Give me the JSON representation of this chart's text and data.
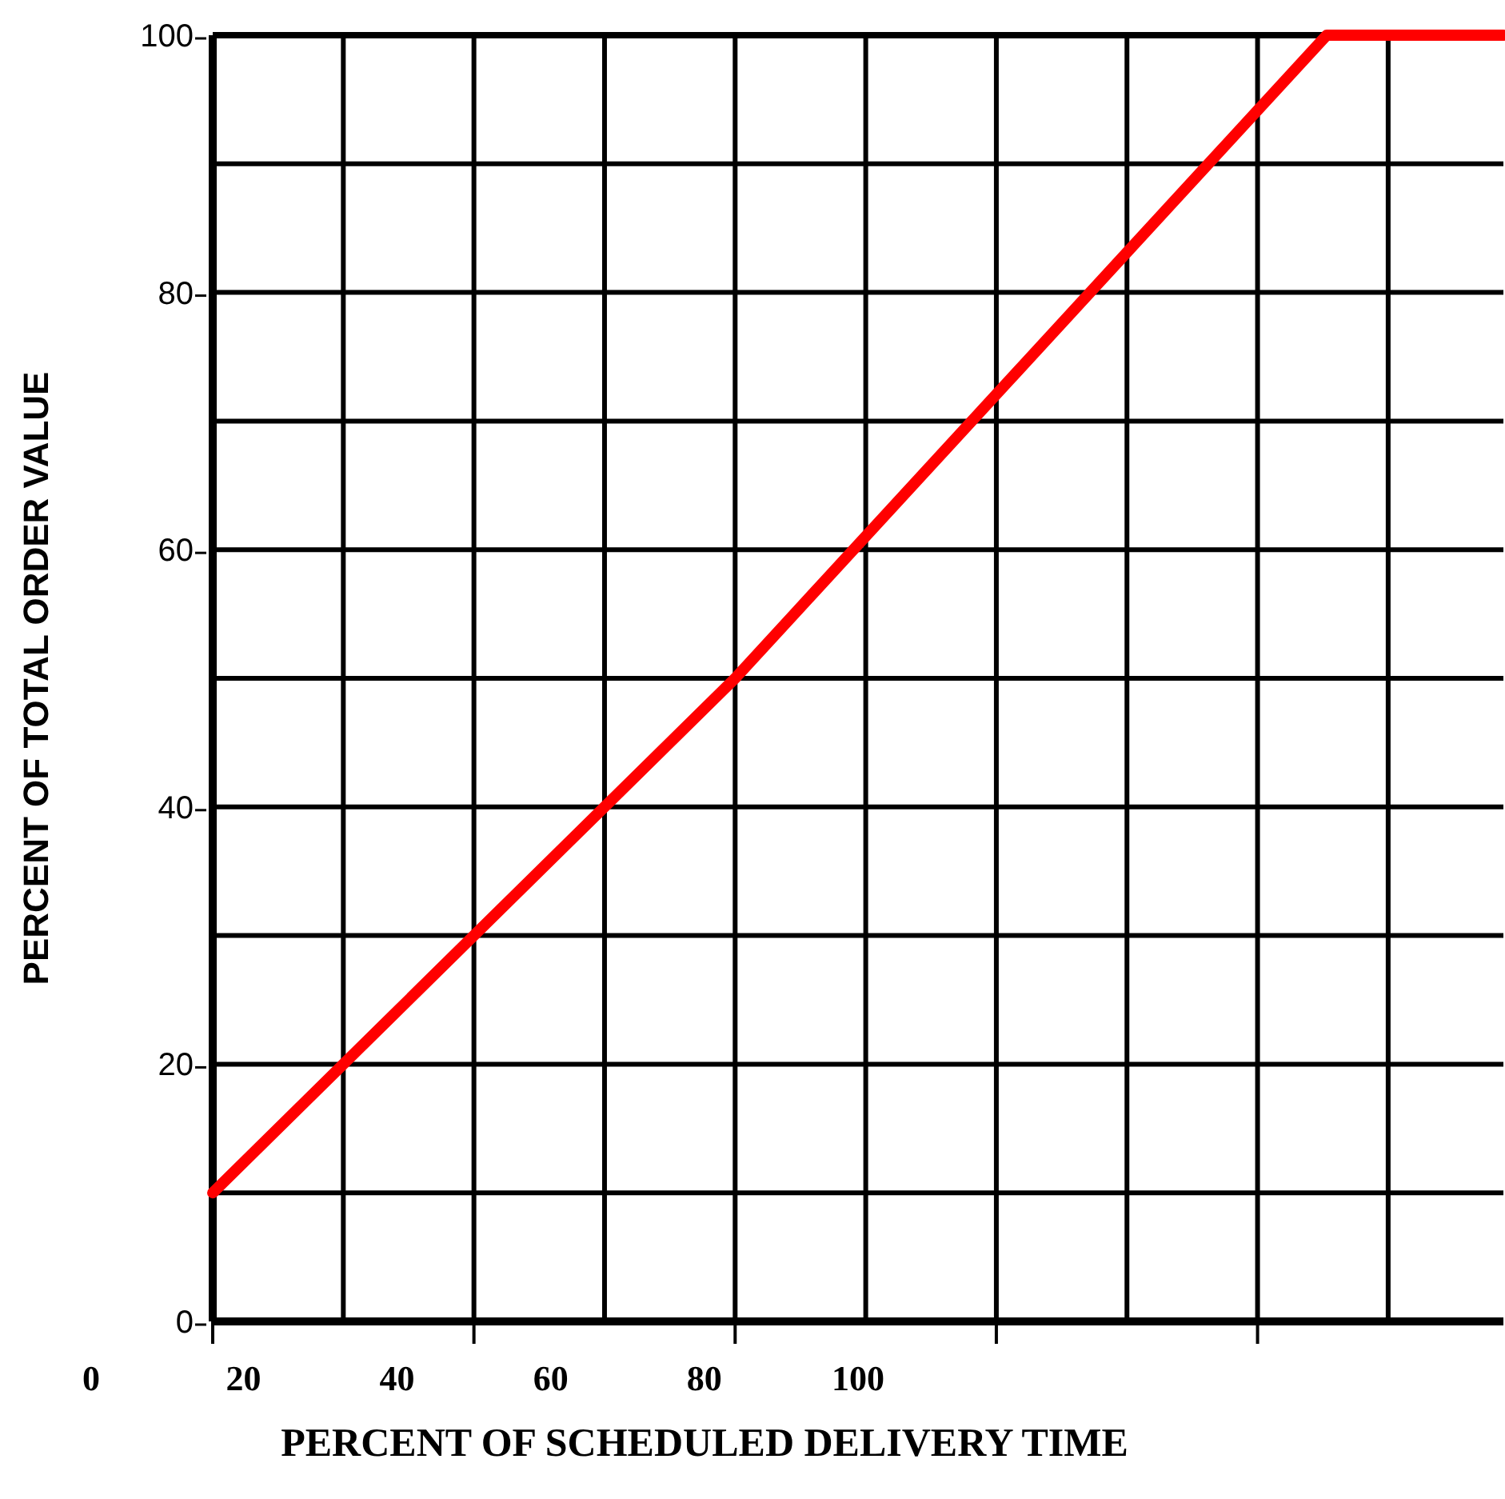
{
  "chart_data": {
    "type": "line",
    "xlabel": "PERCENT OF SCHEDULED DELIVERY TIME",
    "ylabel": "PERCENT OF TOTAL ORDER VALUE",
    "xlim": [
      16,
      184
    ],
    "annotations": [
      "0"
    ],
    "xticks": [
      20,
      40,
      60,
      80,
      100,
      {
        "value": 16,
        "label": null
      },
      {
        "value": 33,
        "label": null
      },
      {
        "value": 50,
        "label": null
      },
      {
        "value": 67,
        "label": null
      },
      {
        "value": 84,
        "label": null
      },
      {
        "value": 101,
        "label": null
      },
      {
        "value": 118,
        "label": null
      },
      {
        "value": 135,
        "label": null
      },
      {
        "value": 152,
        "label": null
      },
      {
        "value": 169,
        "label": null
      }
    ],
    "ylim": [
      0,
      100
    ],
    "yticks": [
      0,
      20,
      40,
      60,
      80,
      100,
      {
        "value": 10,
        "label": null
      },
      {
        "value": 30,
        "label": null
      },
      {
        "value": 50,
        "label": null
      },
      {
        "value": 70,
        "label": null
      },
      {
        "value": 90,
        "label": null
      }
    ],
    "grid": true,
    "marker": "none",
    "line_style": "solid",
    "series": [
      {
        "x": [
          16,
          84,
          161,
          184
        ],
        "values": [
          10,
          50,
          100,
          100
        ],
        "color": "#ff0000"
      }
    ]
  }
}
